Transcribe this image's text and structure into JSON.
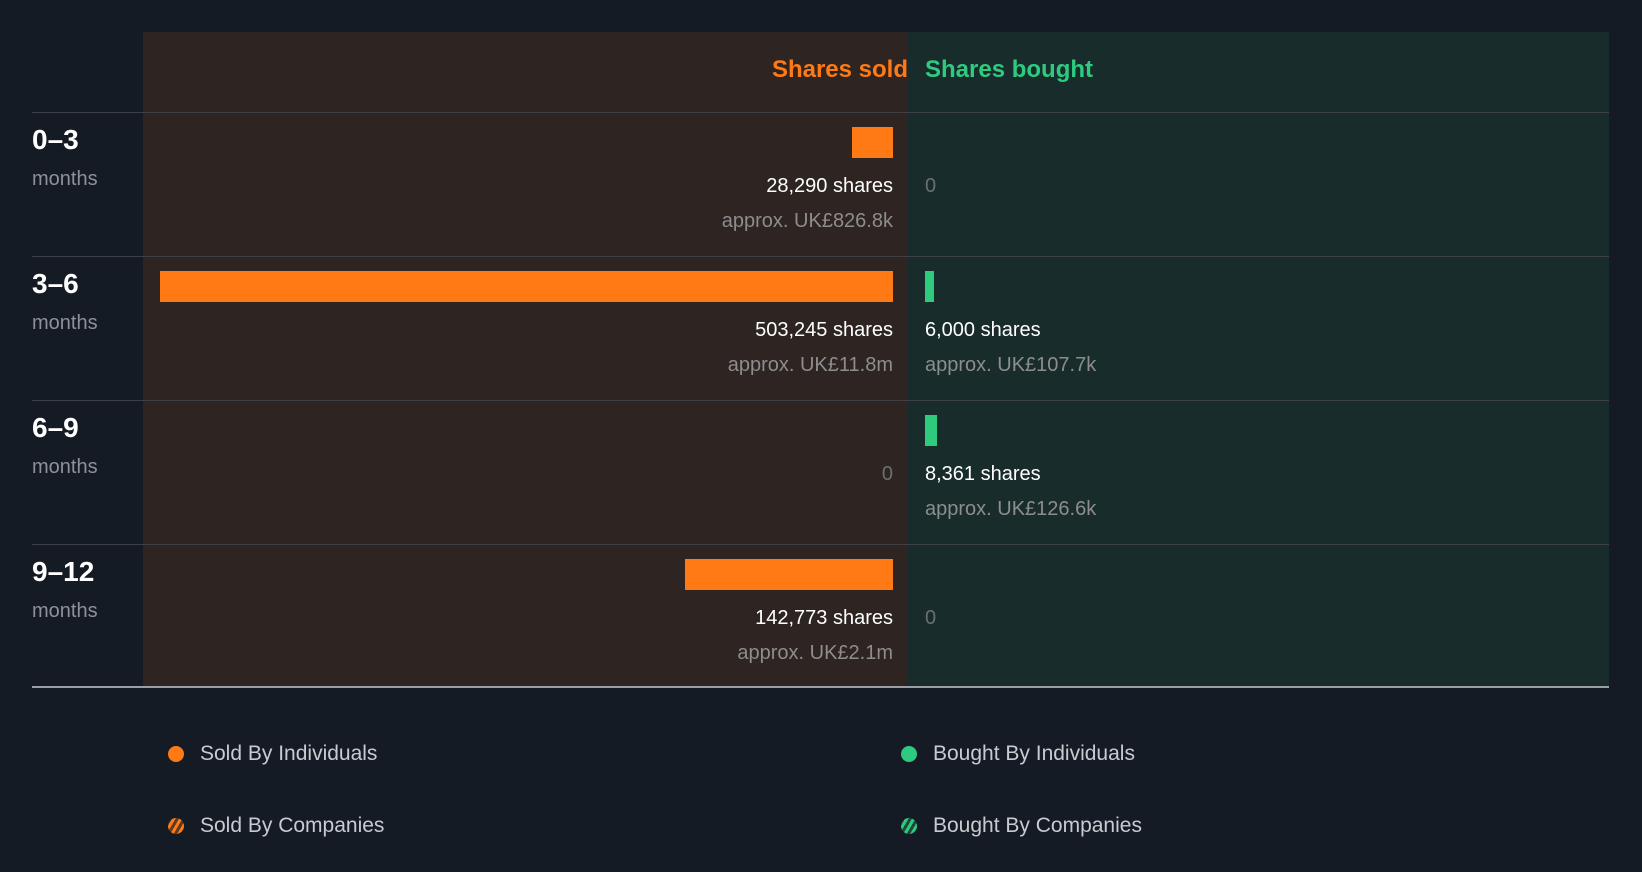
{
  "chart_data": {
    "type": "bar",
    "headers": {
      "sold": "Shares sold",
      "bought": "Shares bought"
    },
    "rows": [
      {
        "range": "0–3",
        "unit": "months",
        "sold": 28290,
        "sold_label": "28,290 shares",
        "sold_value": "approx. UK£826.8k",
        "bought": 0,
        "bought_label": "0",
        "bought_value": null
      },
      {
        "range": "3–6",
        "unit": "months",
        "sold": 503245,
        "sold_label": "503,245 shares",
        "sold_value": "approx. UK£11.8m",
        "bought": 6000,
        "bought_label": "6,000 shares",
        "bought_value": "approx. UK£107.7k"
      },
      {
        "range": "6–9",
        "unit": "months",
        "sold": 0,
        "sold_label": "0",
        "sold_value": null,
        "bought": 8361,
        "bought_label": "8,361 shares",
        "bought_value": "approx. UK£126.6k"
      },
      {
        "range": "9–12",
        "unit": "months",
        "sold": 142773,
        "sold_label": "142,773 shares",
        "sold_value": "approx. UK£2.1m",
        "bought": 0,
        "bought_label": "0",
        "bought_value": null
      }
    ],
    "max": 503245,
    "legend": [
      "Sold By Individuals",
      "Bought By Individuals",
      "Sold By Companies",
      "Bought By Companies"
    ],
    "colors": {
      "sold": "#ff7a14",
      "bought": "#2ecb7f"
    }
  }
}
